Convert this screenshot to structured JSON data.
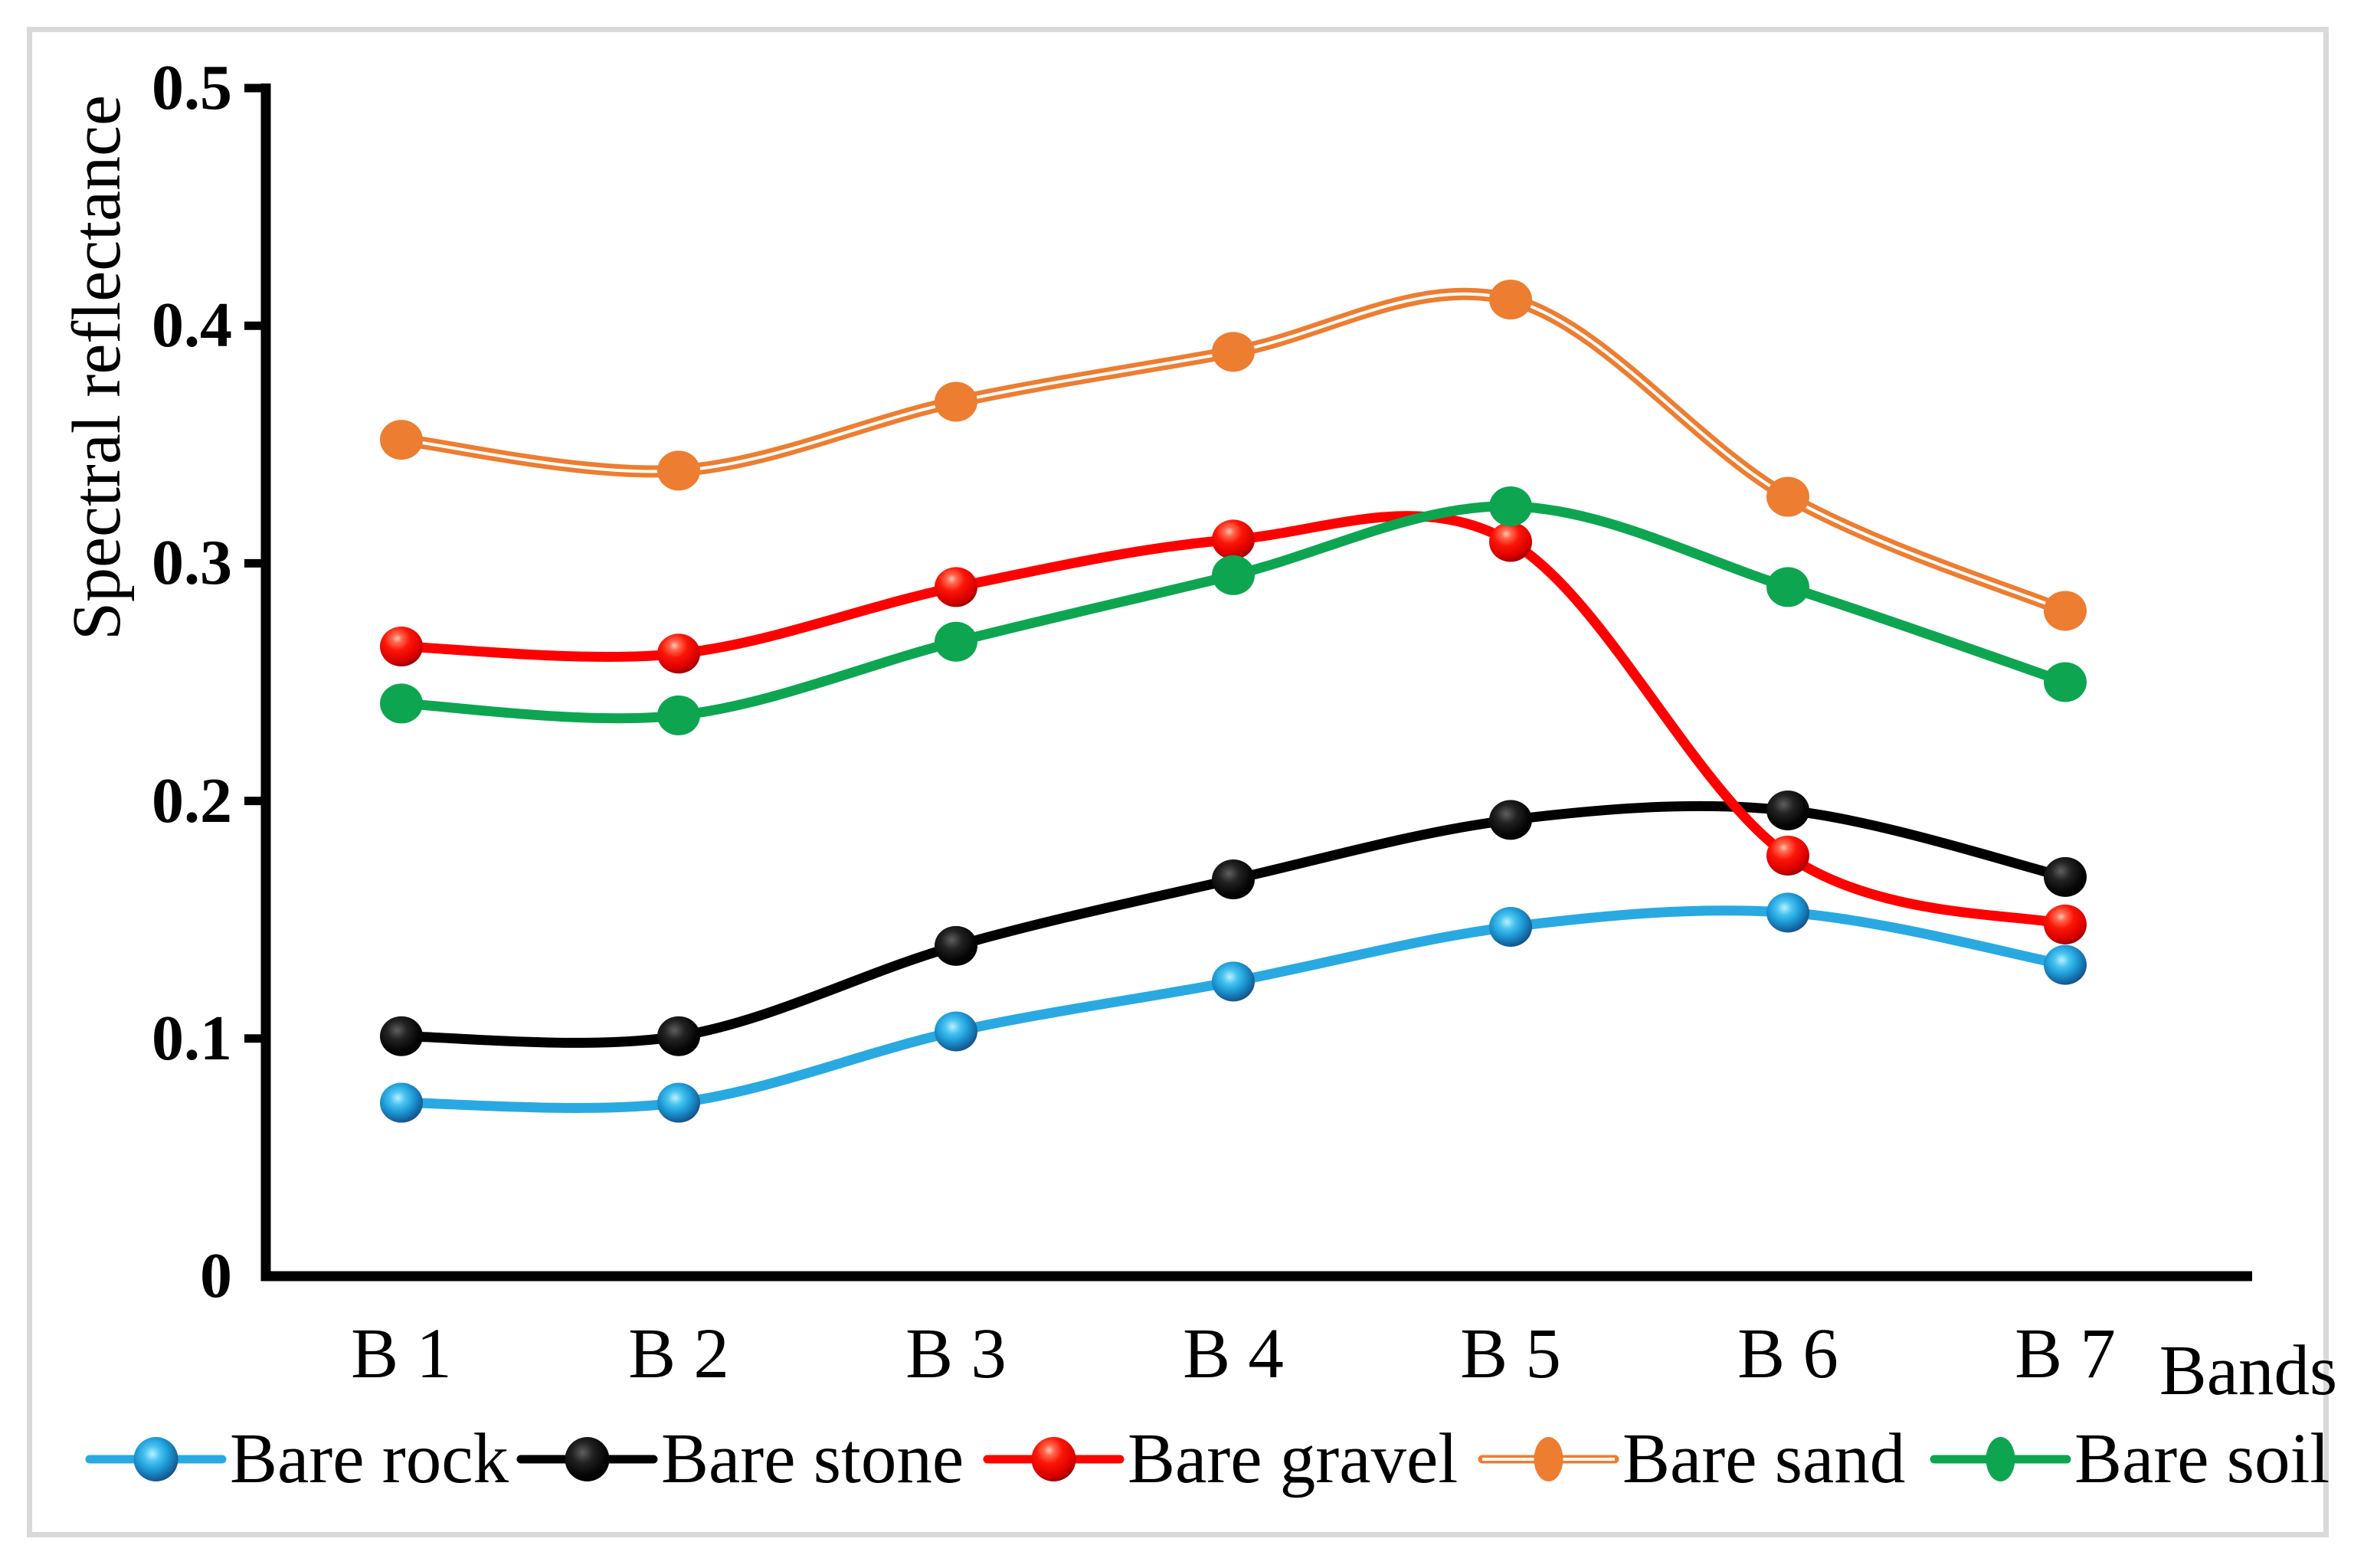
{
  "figure": {
    "background": "#ffffff",
    "border_color": "#d9d9d9"
  },
  "chart_data": {
    "type": "line",
    "title": "",
    "ylabel": "Spectral reflectance",
    "xlabel": "Bands",
    "categories": [
      "B 1",
      "B 2",
      "B 3",
      "B 4",
      "B 5",
      "B 6",
      "B 7"
    ],
    "ylim": [
      0,
      0.5
    ],
    "yticks": [
      0,
      0.1,
      0.2,
      0.3,
      0.4,
      0.5
    ],
    "ytick_labels": [
      "0",
      "0.1",
      "0.2",
      "0.3",
      "0.4",
      "0.5"
    ],
    "grid": false,
    "line_smoothing": true,
    "legend_position": "bottom",
    "series": [
      {
        "name": "Bare rock",
        "color": "#29a9e1",
        "marker": "sphere-blue",
        "values": [
          0.073,
          0.073,
          0.103,
          0.124,
          0.147,
          0.153,
          0.131
        ]
      },
      {
        "name": "Bare stone",
        "color": "#000000",
        "marker": "sphere-black",
        "values": [
          0.101,
          0.101,
          0.139,
          0.167,
          0.192,
          0.196,
          0.168
        ]
      },
      {
        "name": "Bare gravel",
        "color": "#fe0000",
        "marker": "sphere-red",
        "values": [
          0.265,
          0.262,
          0.29,
          0.31,
          0.309,
          0.177,
          0.148
        ]
      },
      {
        "name": "Bare sand",
        "color": "#ed7d31",
        "marker": "flat",
        "stripe": true,
        "values": [
          0.352,
          0.339,
          0.368,
          0.389,
          0.411,
          0.328,
          0.28
        ]
      },
      {
        "name": "Bare soil",
        "color": "#0ea551",
        "marker": "flat",
        "values": [
          0.241,
          0.236,
          0.267,
          0.295,
          0.324,
          0.29,
          0.25
        ]
      }
    ]
  }
}
